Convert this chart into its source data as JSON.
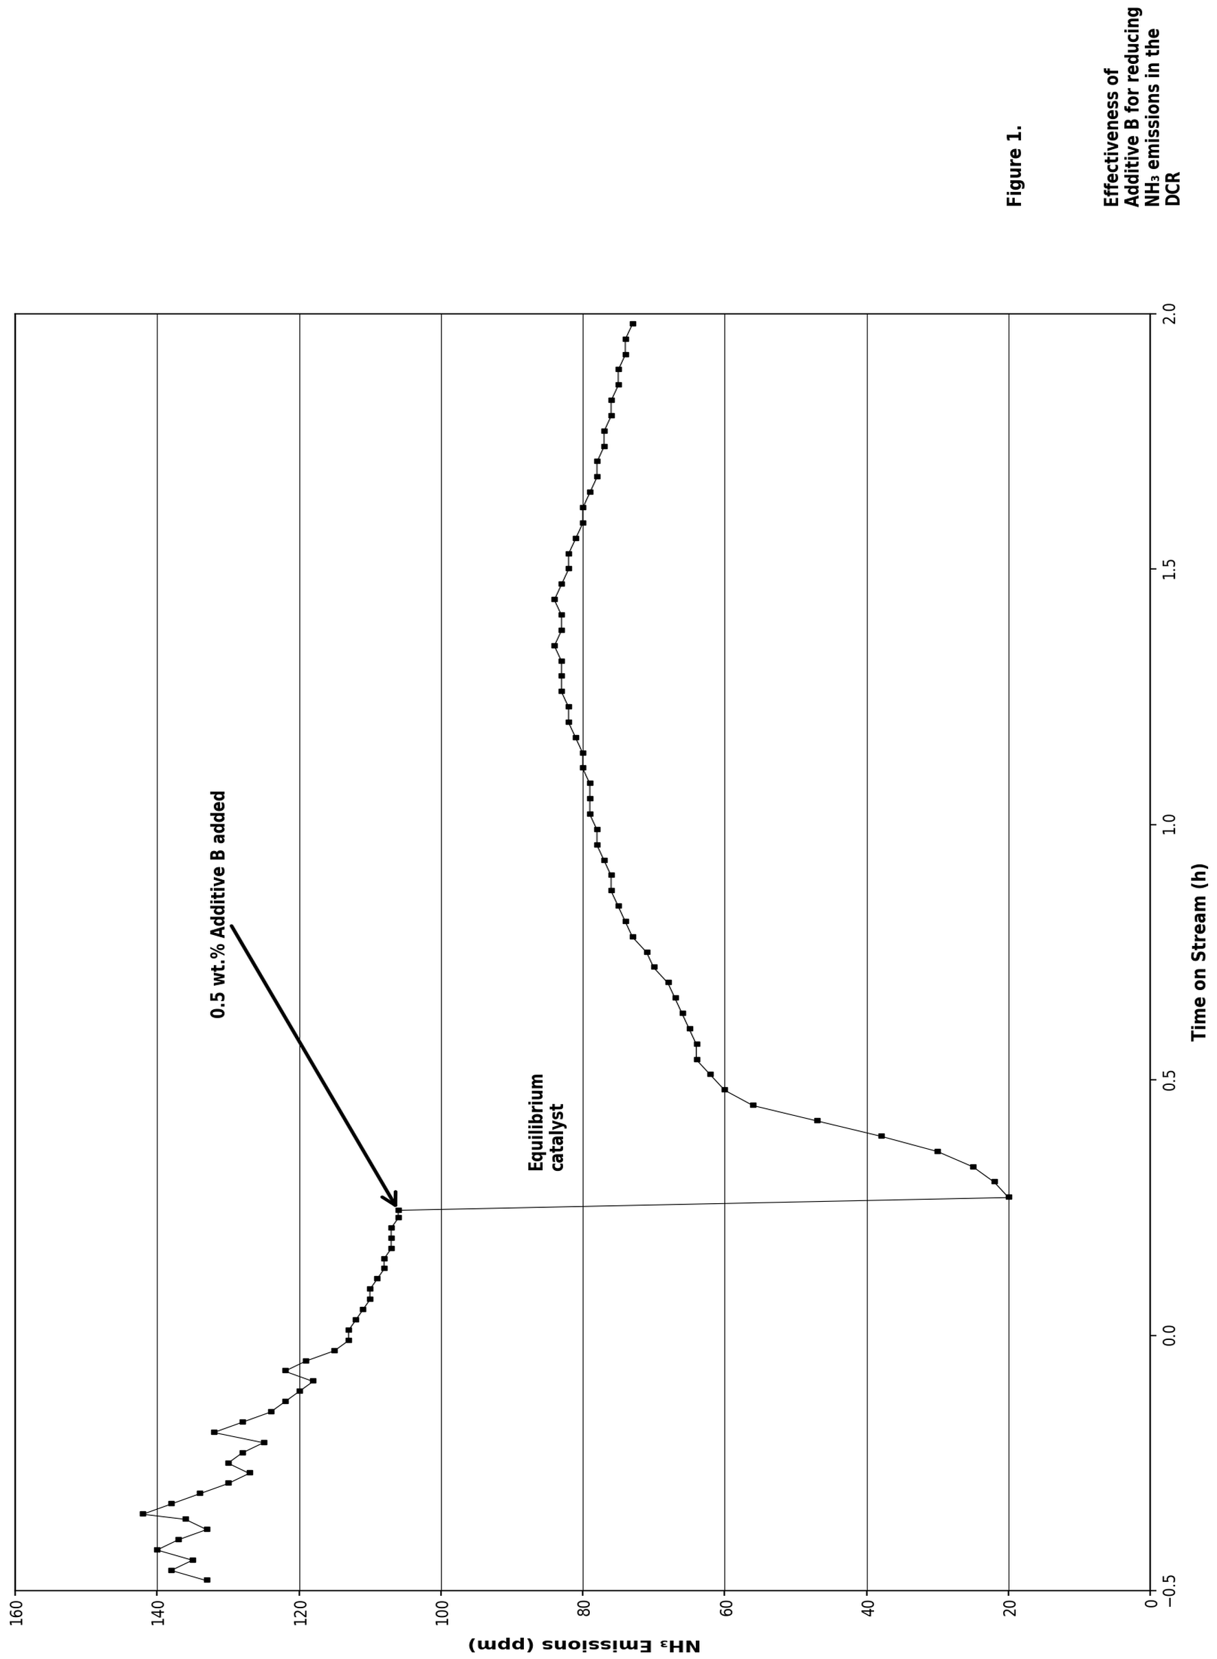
{
  "figure_title": "Figure 1.",
  "subtitle": "Effectiveness of Additive B for reducing NH₃ emissions in the DCR",
  "xlabel": "Time on Stream (h)",
  "ylabel": "NH₃ Emissions (ppm)",
  "xlim": [
    -0.5,
    2.0
  ],
  "ylim": [
    0,
    160
  ],
  "xticks": [
    -0.5,
    0.0,
    0.5,
    1.0,
    1.5,
    2.0
  ],
  "yticks": [
    0,
    20,
    40,
    60,
    80,
    100,
    120,
    140,
    160
  ],
  "annotation1_text": "0.5 wt.% Additive B added",
  "annotation2_text": "Equilibrium\ncatalyst",
  "bg_color": "#ffffff",
  "line_color": "#000000",
  "marker": "s",
  "marker_size": 4,
  "data_x": [
    -0.48,
    -0.46,
    -0.44,
    -0.42,
    -0.4,
    -0.38,
    -0.36,
    -0.35,
    -0.33,
    -0.31,
    -0.29,
    -0.27,
    -0.25,
    -0.23,
    -0.21,
    -0.19,
    -0.17,
    -0.15,
    -0.13,
    -0.11,
    -0.09,
    -0.07,
    -0.05,
    -0.03,
    -0.01,
    0.01,
    0.03,
    0.05,
    0.07,
    0.09,
    0.11,
    0.13,
    0.15,
    0.17,
    0.19,
    0.21,
    0.23,
    0.245,
    0.27,
    0.3,
    0.33,
    0.36,
    0.39,
    0.42,
    0.45,
    0.48,
    0.51,
    0.54,
    0.57,
    0.6,
    0.63,
    0.66,
    0.69,
    0.72,
    0.75,
    0.78,
    0.81,
    0.84,
    0.87,
    0.9,
    0.93,
    0.96,
    0.99,
    1.02,
    1.05,
    1.08,
    1.11,
    1.14,
    1.17,
    1.2,
    1.23,
    1.26,
    1.29,
    1.32,
    1.35,
    1.38,
    1.41,
    1.44,
    1.47,
    1.5,
    1.53,
    1.56,
    1.59,
    1.62,
    1.65,
    1.68,
    1.71,
    1.74,
    1.77,
    1.8,
    1.83,
    1.86,
    1.89,
    1.92,
    1.95,
    1.98
  ],
  "data_y": [
    133,
    138,
    135,
    140,
    137,
    133,
    136,
    142,
    138,
    134,
    130,
    127,
    130,
    128,
    125,
    132,
    128,
    124,
    122,
    120,
    118,
    122,
    119,
    115,
    113,
    113,
    112,
    111,
    110,
    110,
    109,
    108,
    108,
    107,
    107,
    107,
    106,
    106,
    20,
    22,
    25,
    30,
    38,
    47,
    56,
    60,
    62,
    64,
    64,
    65,
    66,
    67,
    68,
    70,
    71,
    73,
    74,
    75,
    76,
    76,
    77,
    78,
    78,
    79,
    79,
    79,
    80,
    80,
    81,
    82,
    82,
    83,
    83,
    83,
    84,
    83,
    83,
    84,
    83,
    82,
    82,
    81,
    80,
    80,
    79,
    78,
    78,
    77,
    77,
    76,
    76,
    75,
    75,
    74,
    74,
    73
  ]
}
